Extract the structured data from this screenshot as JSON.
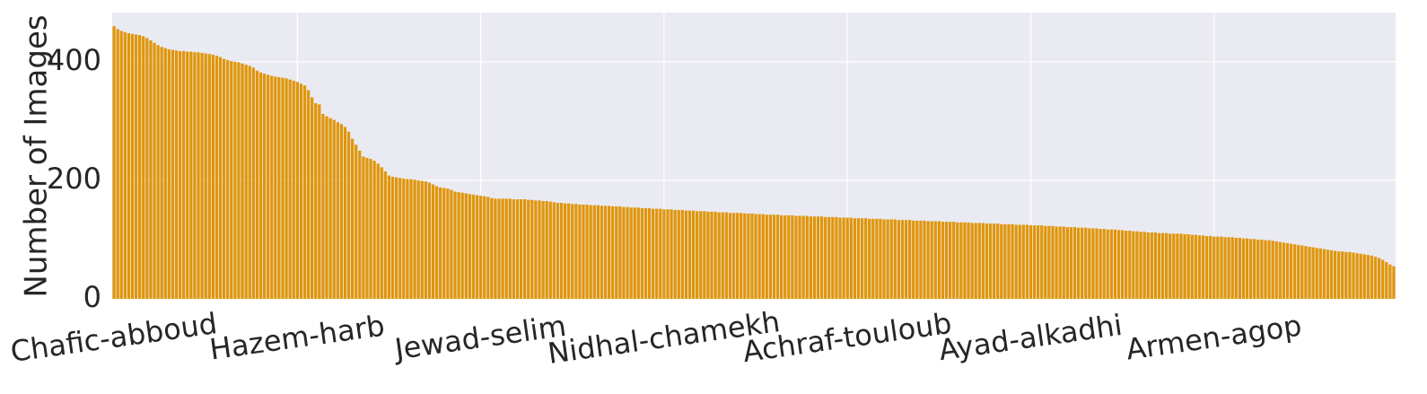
{
  "chart_data": {
    "type": "bar",
    "y_label": "Number of Images",
    "categories": [
      "Chafic-abboud",
      null,
      null,
      null,
      null,
      null,
      null,
      null,
      null,
      null,
      null,
      null,
      null,
      null,
      null,
      null,
      null,
      null,
      null,
      null,
      null,
      null,
      null,
      null,
      null,
      null,
      null,
      null,
      null,
      null,
      null,
      null,
      null,
      null,
      null,
      null,
      null,
      null,
      null,
      null,
      null,
      null,
      null,
      null,
      null,
      null,
      null,
      null,
      null,
      null,
      "Hazem-harb",
      null,
      null,
      null,
      null,
      null,
      null,
      null,
      null,
      null,
      null,
      null,
      null,
      null,
      null,
      null,
      null,
      null,
      null,
      null,
      null,
      null,
      null,
      null,
      null,
      null,
      null,
      null,
      null,
      null,
      null,
      null,
      null,
      null,
      null,
      null,
      null,
      null,
      null,
      null,
      null,
      null,
      null,
      null,
      null,
      null,
      null,
      null,
      null,
      null,
      "Jewad-selim",
      null,
      null,
      null,
      null,
      null,
      null,
      null,
      null,
      null,
      null,
      null,
      null,
      null,
      null,
      null,
      null,
      null,
      null,
      null,
      null,
      null,
      null,
      null,
      null,
      null,
      null,
      null,
      null,
      null,
      null,
      null,
      null,
      null,
      null,
      null,
      null,
      null,
      null,
      null,
      null,
      null,
      null,
      null,
      null,
      null,
      null,
      null,
      null,
      null,
      "Nidhal-chamekh",
      null,
      null,
      null,
      null,
      null,
      null,
      null,
      null,
      null,
      null,
      null,
      null,
      null,
      null,
      null,
      null,
      null,
      null,
      null,
      null,
      null,
      null,
      null,
      null,
      null,
      null,
      null,
      null,
      null,
      null,
      null,
      null,
      null,
      null,
      null,
      null,
      null,
      null,
      null,
      null,
      null,
      null,
      null,
      null,
      null,
      null,
      null,
      null,
      null,
      "Achraf-touloub",
      null,
      null,
      null,
      null,
      null,
      null,
      null,
      null,
      null,
      null,
      null,
      null,
      null,
      null,
      null,
      null,
      null,
      null,
      null,
      null,
      null,
      null,
      null,
      null,
      null,
      null,
      null,
      null,
      null,
      null,
      null,
      null,
      null,
      null,
      null,
      null,
      null,
      null,
      null,
      null,
      null,
      null,
      null,
      null,
      null,
      null,
      null,
      null,
      null,
      "Ayad-alkadhi",
      null,
      null,
      null,
      null,
      null,
      null,
      null,
      null,
      null,
      null,
      null,
      null,
      null,
      null,
      null,
      null,
      null,
      null,
      null,
      null,
      null,
      null,
      null,
      null,
      null,
      null,
      null,
      null,
      null,
      null,
      null,
      null,
      null,
      null,
      null,
      null,
      null,
      null,
      null,
      null,
      null,
      null,
      null,
      null,
      null,
      null,
      null,
      null,
      null,
      "Armen-agop",
      null,
      null,
      null,
      null,
      null,
      null,
      null,
      null,
      null,
      null,
      null,
      null,
      null,
      null,
      null,
      null,
      null,
      null,
      null,
      null,
      null,
      null,
      null,
      null,
      null,
      null,
      null,
      null,
      null,
      null,
      null,
      null,
      null,
      null,
      null,
      null,
      null,
      null,
      null,
      null,
      null,
      null,
      null,
      null,
      null,
      null,
      null,
      null,
      null
    ],
    "values": [
      460,
      455,
      452,
      450,
      448,
      447,
      446,
      445,
      443,
      440,
      436,
      432,
      428,
      425,
      423,
      421,
      420,
      419,
      418,
      418,
      417,
      417,
      416,
      416,
      415,
      414,
      413,
      412,
      410,
      408,
      405,
      403,
      401,
      400,
      399,
      397,
      395,
      393,
      390,
      385,
      382,
      380,
      378,
      376,
      375,
      374,
      373,
      372,
      370,
      368,
      366,
      363,
      360,
      352,
      340,
      330,
      328,
      312,
      308,
      305,
      302,
      298,
      295,
      290,
      282,
      270,
      260,
      250,
      240,
      238,
      236,
      233,
      228,
      222,
      215,
      208,
      206,
      205,
      204,
      203,
      202,
      202,
      201,
      200,
      199,
      198,
      196,
      193,
      190,
      188,
      187,
      186,
      184,
      181,
      180,
      179,
      178,
      177,
      176,
      175,
      174,
      173,
      172,
      170,
      169,
      169,
      169,
      169,
      169,
      168,
      168,
      168,
      168,
      167,
      167,
      166,
      166,
      165,
      165,
      164,
      163,
      162,
      162,
      161,
      161,
      160,
      160,
      159,
      159,
      159,
      158,
      158,
      158,
      157,
      157,
      157,
      156,
      156,
      156,
      155,
      155,
      154,
      154,
      154,
      153,
      153,
      153,
      152,
      152,
      152,
      151,
      151,
      151,
      150,
      150,
      150,
      149,
      149,
      149,
      148,
      148,
      148,
      147,
      147,
      147,
      146,
      146,
      146,
      145,
      145,
      145,
      145,
      144,
      144,
      144,
      143,
      143,
      143,
      142,
      142,
      142,
      142,
      141,
      141,
      141,
      141,
      140,
      140,
      140,
      140,
      139,
      139,
      139,
      139,
      138,
      138,
      138,
      138,
      137,
      137,
      137,
      137,
      136,
      136,
      136,
      136,
      135,
      135,
      135,
      135,
      134,
      134,
      134,
      134,
      133,
      133,
      133,
      133,
      132,
      132,
      132,
      132,
      131,
      131,
      131,
      131,
      130,
      130,
      130,
      130,
      129,
      129,
      129,
      129,
      128,
      128,
      128,
      128,
      127,
      127,
      127,
      127,
      126,
      126,
      126,
      126,
      125,
      125,
      125,
      125,
      124,
      124,
      124,
      124,
      123,
      123,
      123,
      122,
      122,
      122,
      121,
      121,
      121,
      120,
      120,
      120,
      119,
      119,
      119,
      118,
      118,
      117,
      117,
      117,
      116,
      116,
      115,
      115,
      114,
      114,
      113,
      113,
      112,
      112,
      112,
      111,
      111,
      111,
      110,
      110,
      110,
      110,
      109,
      109,
      108,
      108,
      107,
      107,
      106,
      106,
      105,
      105,
      105,
      104,
      104,
      104,
      103,
      103,
      102,
      102,
      101,
      101,
      100,
      100,
      99,
      99,
      98,
      97,
      96,
      95,
      94,
      93,
      92,
      91,
      90,
      89,
      88,
      87,
      86,
      85,
      84,
      83,
      82,
      81,
      80,
      80,
      79,
      79,
      78,
      77,
      76,
      75,
      74,
      73,
      71,
      69,
      66,
      62,
      58,
      55
    ],
    "color": "#e0960a",
    "ylim": [
      0,
      483
    ],
    "yticks": [
      0,
      200,
      400
    ],
    "grid": true
  }
}
